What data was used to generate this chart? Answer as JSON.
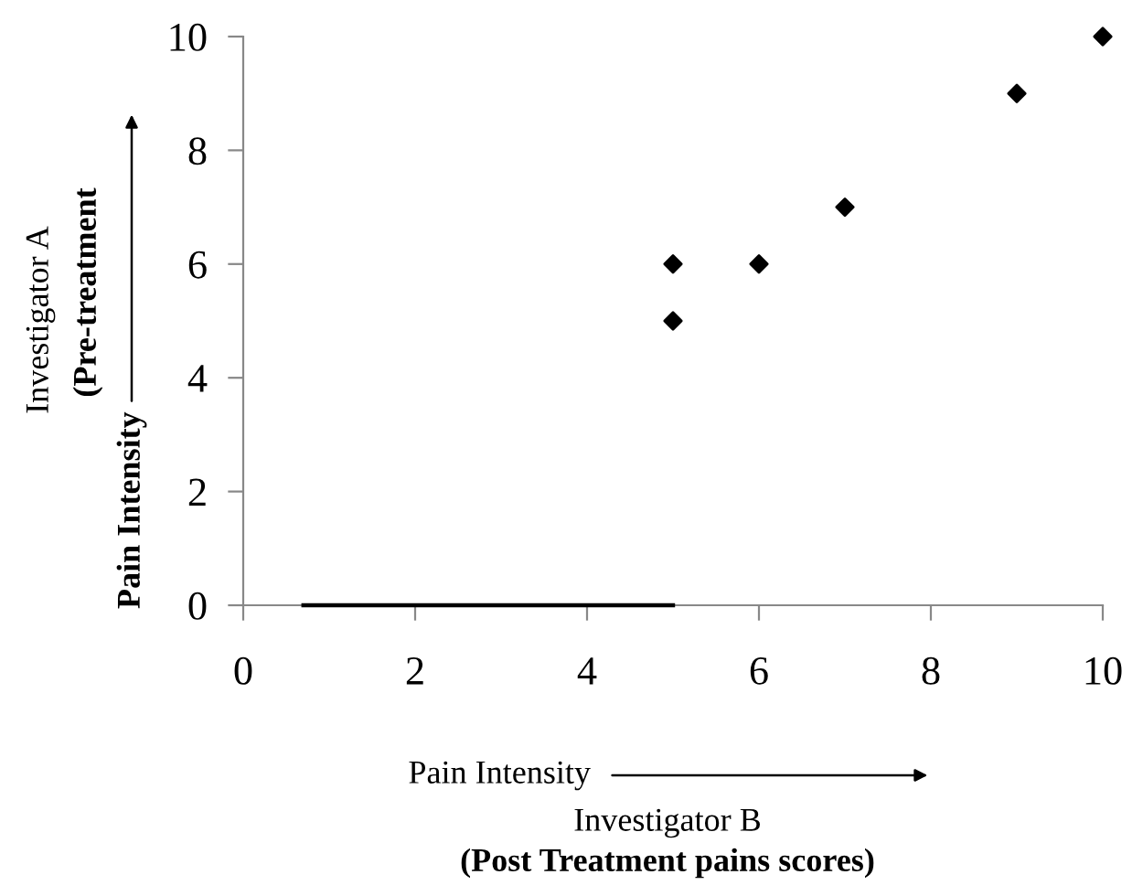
{
  "chart_data": {
    "type": "scatter",
    "xlabel": "Pain Intensity\nInvestigator B\n(Post Treatment pains scores)",
    "ylabel": "Investigator A\n(Pre-treatment\nPain Intensity",
    "x": [
      5,
      5,
      6,
      7,
      9,
      10
    ],
    "series": [
      {
        "color": "#000000",
        "marker": "diamond",
        "values": [
          5,
          6,
          6,
          7,
          9,
          10
        ]
      },
      {
        "type": "line",
        "color": "#000000",
        "x": [
          0.7,
          5
        ],
        "values": [
          0,
          0
        ],
        "marker": "none"
      }
    ],
    "xlim": [
      0,
      10
    ],
    "ylim": [
      0,
      10
    ],
    "xticks": [
      0,
      2,
      4,
      6,
      8,
      10
    ],
    "yticks": [
      0,
      2,
      4,
      6,
      8,
      10
    ],
    "grid": false,
    "legend": false
  }
}
